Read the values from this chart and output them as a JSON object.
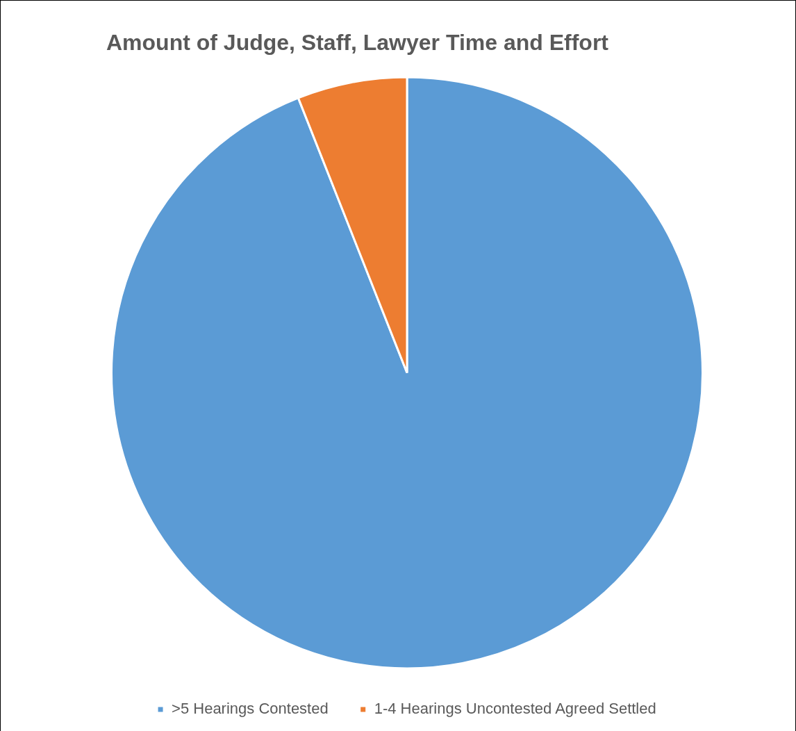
{
  "chart_data": {
    "type": "pie",
    "title": "Amount of Judge, Staff, Lawyer Time and Effort",
    "categories": [
      ">5 Hearings Contested",
      "1-4 Hearings Uncontested Agreed Settled"
    ],
    "values": [
      94,
      6
    ],
    "colors": [
      "#5b9bd5",
      "#ed7d31"
    ],
    "legend": "bottom"
  }
}
